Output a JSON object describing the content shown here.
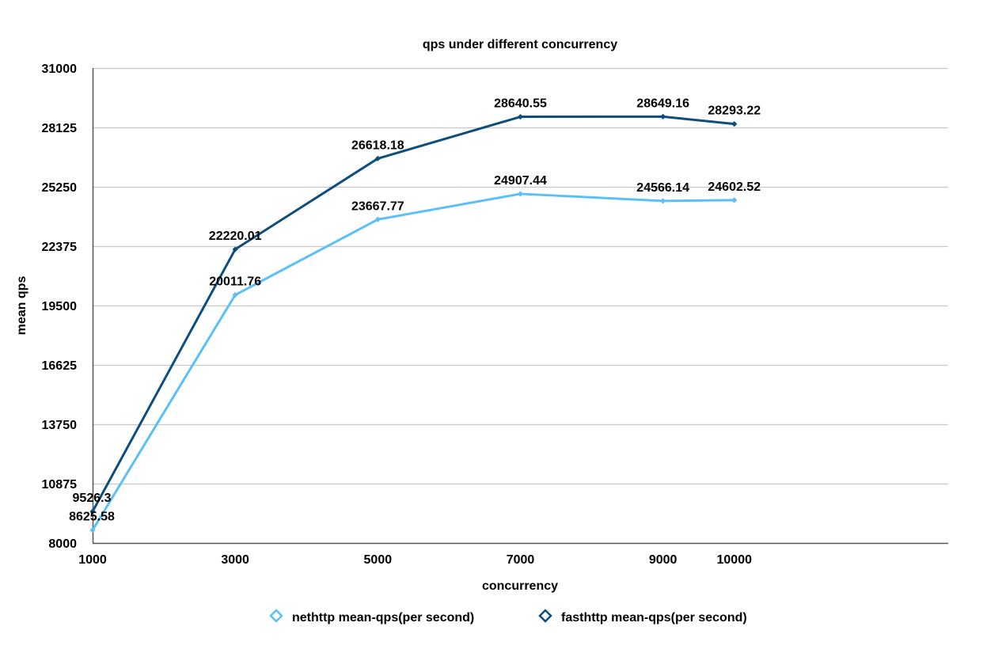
{
  "chart_data": {
    "type": "line",
    "title": "qps under different concurrency",
    "xlabel": "concurrency",
    "ylabel": "mean qps",
    "x": [
      1000,
      3000,
      5000,
      7000,
      9000,
      10000
    ],
    "x_tick_labels": [
      "1000",
      "3000",
      "5000",
      "7000",
      "9000",
      "10000"
    ],
    "xlim": [
      1000,
      13000
    ],
    "ylim": [
      8000,
      31000
    ],
    "y_tick_labels": [
      "31000",
      "28125",
      "25250",
      "22375",
      "19500",
      "16625",
      "13750",
      "10875",
      "8000"
    ],
    "y_ticks": [
      31000,
      28125,
      25250,
      22375,
      19500,
      16625,
      13750,
      10875,
      8000
    ],
    "grid": true,
    "legend_position": "bottom",
    "series": [
      {
        "name": "nethttp mean-qps(per second)",
        "color": "#5bc0f5",
        "values": [
          8625.58,
          20011.76,
          23667.77,
          24907.44,
          24566.14,
          24602.52
        ],
        "labels": [
          "8625.58",
          "20011.76",
          "23667.77",
          "24907.44",
          "24566.14",
          "24602.52"
        ]
      },
      {
        "name": "fasthttp mean-qps(per second)",
        "color": "#0d4e7c",
        "values": [
          9526.3,
          22220.01,
          26618.18,
          28640.55,
          28649.16,
          28293.22
        ],
        "labels": [
          "9526.3",
          "22220.01",
          "26618.18",
          "28640.55",
          "28649.16",
          "28293.22"
        ]
      }
    ]
  }
}
